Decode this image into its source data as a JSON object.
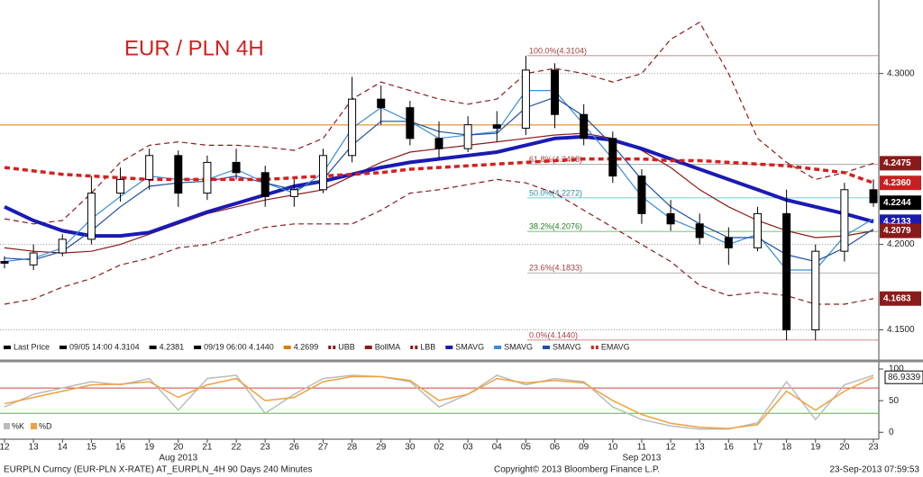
{
  "chart_data": [
    {
      "type": "candlestick",
      "title": "EUR / PLN 4H",
      "categories": [
        "12",
        "13",
        "14",
        "15",
        "16",
        "19",
        "20",
        "21",
        "22",
        "23",
        "26",
        "27",
        "28",
        "29",
        "30",
        "02",
        "03",
        "04",
        "05",
        "06",
        "09",
        "10",
        "11",
        "12",
        "13",
        "16",
        "17",
        "18",
        "19",
        "20",
        "23"
      ],
      "months": [
        "Aug 2013",
        "Sep 2013"
      ],
      "candles": {
        "open": [
          4.19,
          4.188,
          4.195,
          4.203,
          4.23,
          4.238,
          4.252,
          4.23,
          4.248,
          4.242,
          4.228,
          4.232,
          4.252,
          4.285,
          4.28,
          4.262,
          4.256,
          4.27,
          4.268,
          4.302,
          4.276,
          4.262,
          4.24,
          4.218,
          4.212,
          4.204,
          4.198,
          4.218,
          4.15,
          4.196,
          4.232
        ],
        "high": [
          4.193,
          4.2,
          4.206,
          4.24,
          4.245,
          4.256,
          4.255,
          4.252,
          4.256,
          4.246,
          4.238,
          4.256,
          4.298,
          4.293,
          4.284,
          4.272,
          4.275,
          4.278,
          4.3104,
          4.306,
          4.282,
          4.266,
          4.244,
          4.226,
          4.218,
          4.21,
          4.222,
          4.232,
          4.2,
          4.236,
          4.238
        ],
        "low": [
          4.186,
          4.185,
          4.193,
          4.2,
          4.225,
          4.232,
          4.222,
          4.226,
          4.238,
          4.222,
          4.222,
          4.23,
          4.248,
          4.27,
          4.258,
          4.25,
          4.254,
          4.26,
          4.264,
          4.268,
          4.258,
          4.236,
          4.212,
          4.208,
          4.2,
          4.188,
          4.196,
          4.144,
          4.144,
          4.19,
          4.222
        ],
        "close": [
          4.189,
          4.195,
          4.203,
          4.23,
          4.238,
          4.252,
          4.23,
          4.248,
          4.242,
          4.228,
          4.232,
          4.252,
          4.285,
          4.28,
          4.262,
          4.256,
          4.27,
          4.268,
          4.302,
          4.276,
          4.262,
          4.24,
          4.218,
          4.212,
          4.204,
          4.198,
          4.218,
          4.15,
          4.196,
          4.232,
          4.2244
        ]
      },
      "series": [
        {
          "name": "UBB",
          "color": "#8b1a1a",
          "dash": true,
          "values": [
            4.215,
            4.212,
            4.214,
            4.23,
            4.248,
            4.258,
            4.26,
            4.258,
            4.258,
            4.257,
            4.255,
            4.262,
            4.285,
            4.295,
            4.29,
            4.285,
            4.282,
            4.285,
            4.3,
            4.303,
            4.3,
            4.295,
            4.3,
            4.32,
            4.33,
            4.3,
            4.262,
            4.248,
            4.238,
            4.242,
            4.2475
          ]
        },
        {
          "name": "BollMA",
          "color": "#8b1a1a",
          "values": [
            4.198,
            4.196,
            4.195,
            4.196,
            4.2,
            4.206,
            4.212,
            4.218,
            4.222,
            4.226,
            4.229,
            4.232,
            4.24,
            4.248,
            4.254,
            4.256,
            4.258,
            4.26,
            4.262,
            4.264,
            4.265,
            4.262,
            4.255,
            4.245,
            4.232,
            4.222,
            4.214,
            4.208,
            4.204,
            4.205,
            4.2079
          ]
        },
        {
          "name": "LBB",
          "color": "#8b1a1a",
          "dash": true,
          "values": [
            4.165,
            4.168,
            4.175,
            4.18,
            4.188,
            4.192,
            4.198,
            4.2,
            4.205,
            4.21,
            4.212,
            4.212,
            4.212,
            4.22,
            4.23,
            4.232,
            4.235,
            4.238,
            4.236,
            4.23,
            4.22,
            4.21,
            4.2,
            4.19,
            4.176,
            4.17,
            4.172,
            4.17,
            4.165,
            4.165,
            4.1683
          ]
        },
        {
          "name": "SMAVG",
          "color": "#1a1ab4",
          "width": 4,
          "values": [
            4.222,
            4.214,
            4.208,
            4.205,
            4.205,
            4.207,
            4.213,
            4.219,
            4.224,
            4.229,
            4.234,
            4.237,
            4.241,
            4.245,
            4.248,
            4.25,
            4.252,
            4.254,
            4.258,
            4.262,
            4.263,
            4.261,
            4.256,
            4.25,
            4.244,
            4.238,
            4.232,
            4.226,
            4.222,
            4.218,
            4.2133
          ]
        },
        {
          "name": "SMAVG",
          "color": "#3a8ed8",
          "values": [
            4.19,
            4.192,
            4.198,
            4.215,
            4.228,
            4.24,
            4.238,
            4.238,
            4.244,
            4.236,
            4.23,
            4.242,
            4.268,
            4.28,
            4.272,
            4.262,
            4.264,
            4.266,
            4.29,
            4.29,
            4.27,
            4.25,
            4.228,
            4.215,
            4.208,
            4.2,
            4.206,
            4.185,
            4.185,
            4.205,
            4.215
          ]
        },
        {
          "name": "SMAVG",
          "color": "#1e4fa0",
          "values": [
            4.192,
            4.191,
            4.196,
            4.208,
            4.222,
            4.234,
            4.236,
            4.237,
            4.24,
            4.236,
            4.232,
            4.238,
            4.258,
            4.272,
            4.272,
            4.266,
            4.264,
            4.265,
            4.28,
            4.286,
            4.275,
            4.258,
            4.238,
            4.222,
            4.212,
            4.204,
            4.204,
            4.194,
            4.19,
            4.198,
            4.209
          ]
        },
        {
          "name": "EMAVG",
          "color": "#d42020",
          "dash": true,
          "width": 3.5,
          "values": [
            4.245,
            4.243,
            4.241,
            4.24,
            4.239,
            4.238,
            4.238,
            4.238,
            4.238,
            4.238,
            4.239,
            4.24,
            4.241,
            4.242,
            4.244,
            4.245,
            4.246,
            4.247,
            4.248,
            4.249,
            4.25,
            4.25,
            4.25,
            4.249,
            4.249,
            4.248,
            4.247,
            4.246,
            4.244,
            4.242,
            4.236
          ],
          "value_labels": [
            null,
            null,
            null,
            null,
            null,
            null,
            null,
            null,
            null,
            null,
            null,
            null,
            null,
            null,
            null,
            null,
            null,
            null,
            null,
            null,
            null,
            null,
            null,
            null,
            null,
            null,
            null,
            null,
            null,
            null,
            "4.2360"
          ]
        }
      ],
      "fib_levels": [
        {
          "value": 4.3104,
          "label": "100.0%(4.3104)"
        },
        {
          "value": 4.2468,
          "label": "61.8%(4.2468)"
        },
        {
          "value": 4.2272,
          "label": "50.0%(4.2272)"
        },
        {
          "value": 4.2076,
          "label": "38.2%(4.2076)"
        },
        {
          "value": 4.1833,
          "label": "23.6%(4.1833)"
        },
        {
          "value": 4.144,
          "label": "0.0%(4.1440)"
        }
      ],
      "hline": {
        "value": 4.2699,
        "color": "#e07b00"
      },
      "legend_items": [
        "Last Price",
        "09/05 14:00 4.3104",
        "4.2381",
        "09/19 06:00 4.1440"
      ],
      "ylim": [
        4.135,
        4.343
      ],
      "yticks": [
        {
          "value": 4.15,
          "label": "4.1500"
        },
        {
          "value": 4.2,
          "label": "4.2000"
        },
        {
          "value": 4.3,
          "label": "4.3000"
        }
      ],
      "grid": true
    },
    {
      "type": "line",
      "series": [
        {
          "name": "%K",
          "color": "#bbbbbb",
          "values": [
            40,
            60,
            70,
            80,
            75,
            85,
            35,
            85,
            90,
            30,
            60,
            85,
            90,
            88,
            80,
            40,
            60,
            90,
            75,
            85,
            80,
            40,
            20,
            10,
            5,
            5,
            15,
            80,
            20,
            75,
            90
          ]
        },
        {
          "name": "%D",
          "color": "#f0a040",
          "values": [
            45,
            55,
            65,
            75,
            76,
            80,
            55,
            75,
            85,
            50,
            55,
            80,
            88,
            88,
            82,
            50,
            60,
            85,
            78,
            82,
            78,
            50,
            28,
            14,
            8,
            6,
            12,
            65,
            35,
            65,
            86.9339
          ]
        }
      ],
      "levels": [
        {
          "value": 70,
          "color": "#d04040"
        },
        {
          "value": 30,
          "color": "#40c040"
        }
      ],
      "ylim": [
        -11,
        110
      ],
      "yticks": [
        0,
        50,
        100
      ]
    }
  ],
  "footer": {
    "left": "EURPLN Curncy (EUR-PLN X-RATE) AT_EURPLN_4H 90 Days 240 Minutes",
    "center": "Copyright© 2013 Bloomberg Finance L.P.",
    "right": "23-Sep-2013 07:59:53"
  }
}
